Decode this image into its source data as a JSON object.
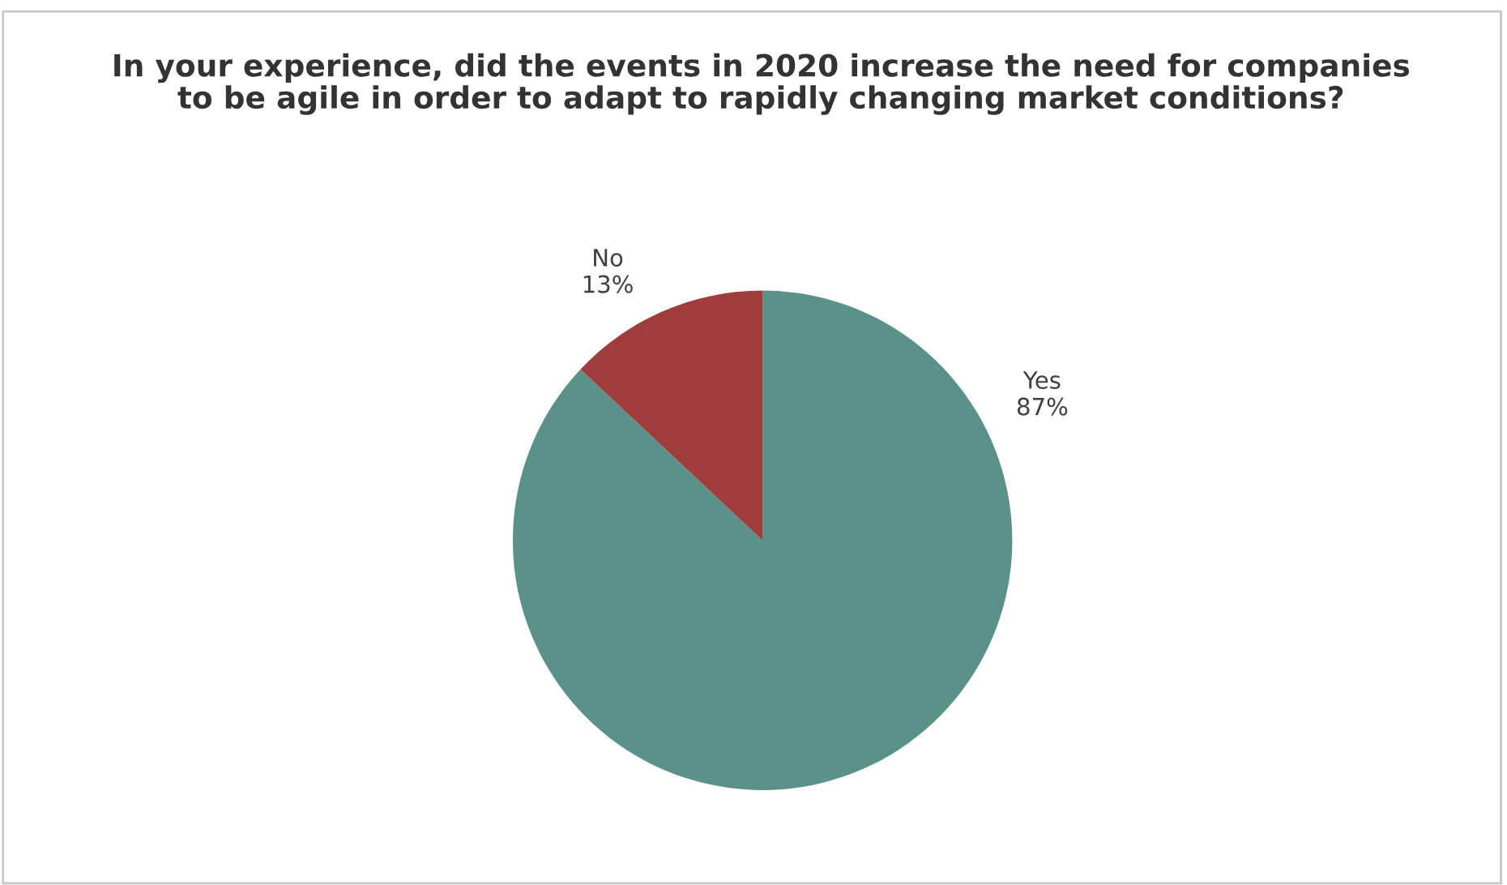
{
  "chart_data": {
    "type": "pie",
    "title": "In your experience, did the events in 2020 increase the need for companies\nto be agile in order to adapt to rapidly changing market conditions?",
    "categories": [
      "Yes",
      "No"
    ],
    "values": [
      87,
      13
    ],
    "colors": [
      "#5a9189",
      "#9e3d3b"
    ],
    "value_labels": [
      "87%",
      "13%"
    ]
  }
}
